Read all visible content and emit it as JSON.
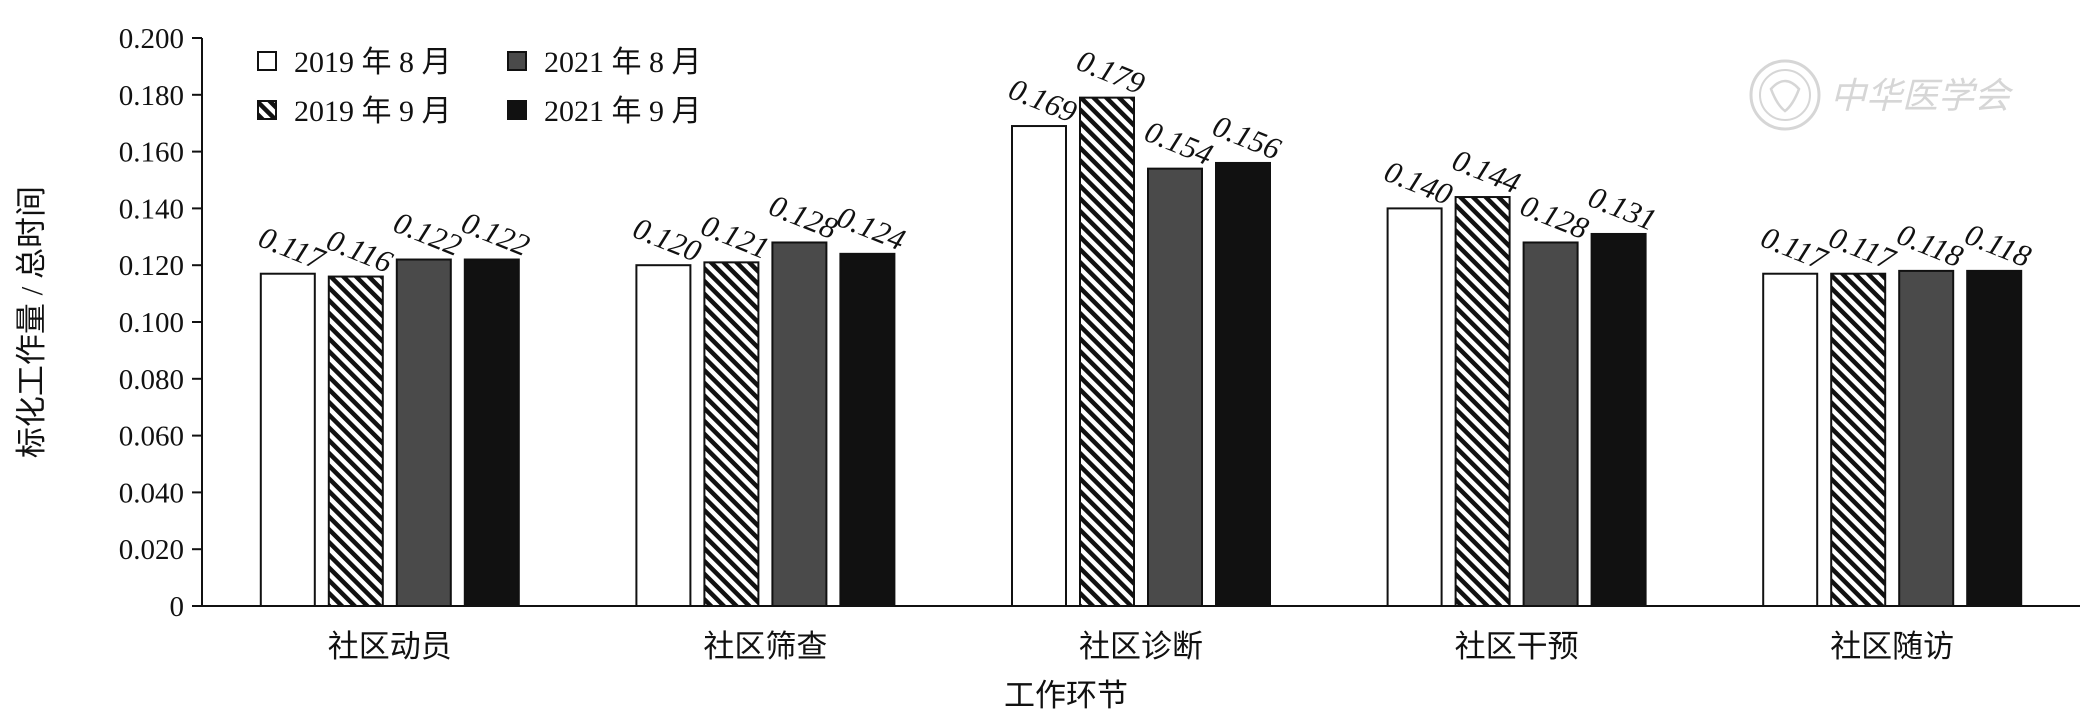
{
  "chart_data": {
    "type": "bar",
    "title": "",
    "xlabel": "工作环节",
    "ylabel": "标化工作量 / 总时间",
    "ylim": [
      0,
      0.2
    ],
    "ytick_step": 0.02,
    "ytick_labels": [
      "0",
      "0.020",
      "0.040",
      "0.060",
      "0.080",
      "0.100",
      "0.120",
      "0.140",
      "0.160",
      "0.180",
      "0.200"
    ],
    "grid": false,
    "legend_position": "top-left",
    "categories": [
      "社区动员",
      "社区筛查",
      "社区诊断",
      "社区干预",
      "社区随访"
    ],
    "series": [
      {
        "name": "2019 年 8 月",
        "values": [
          0.117,
          0.12,
          0.169,
          0.14,
          0.117
        ],
        "labels": [
          "0.117",
          "0.120",
          "0.169",
          "0.140",
          "0.117"
        ],
        "fill": "#ffffff",
        "pattern": "none"
      },
      {
        "name": "2019 年 9 月",
        "values": [
          0.116,
          0.121,
          0.179,
          0.144,
          0.117
        ],
        "labels": [
          "0.116",
          "0.121",
          "0.179",
          "0.144",
          "0.117"
        ],
        "fill": "#111111",
        "pattern": "diagonal-stripes"
      },
      {
        "name": "2021 年 8 月",
        "values": [
          0.122,
          0.128,
          0.154,
          0.128,
          0.118
        ],
        "labels": [
          "0.122",
          "0.128",
          "0.154",
          "0.128",
          "0.118"
        ],
        "fill": "#4a4a4a",
        "pattern": "none"
      },
      {
        "name": "2021 年 9 月",
        "values": [
          0.122,
          0.124,
          0.156,
          0.131,
          0.118
        ],
        "labels": [
          "0.122",
          "0.124",
          "0.156",
          "0.131",
          "0.118"
        ],
        "fill": "#111111",
        "pattern": "none"
      }
    ]
  },
  "watermark": {
    "text": "中华医学会",
    "seal_icon": "society-seal-icon"
  }
}
